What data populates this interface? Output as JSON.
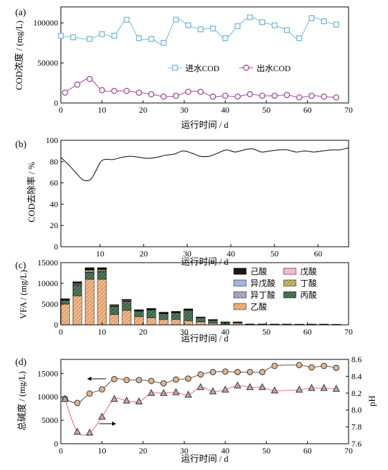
{
  "colors": {
    "influent": "#6db9e0",
    "effluent": "#a0469b",
    "hexanoic": "#111111",
    "valeric": "#f2b8d8",
    "isovaleric": "#9fb7df",
    "butyric": "#c7b96b",
    "isobutyric": "#b7a9cc",
    "propionic": "#4f7a5b",
    "acetic": "#f2b98a",
    "alkalinity": "#e8b48a",
    "ph": "#caa0b5"
  },
  "chart_data": [
    {
      "panel": "(a)",
      "type": "line",
      "ylabel": "COD浓度 / (mg/L)",
      "xlabel": "运行时间 / d",
      "xlim": [
        0,
        70
      ],
      "ylim": [
        0,
        120000
      ],
      "xticks": [
        "0",
        "10",
        "20",
        "30",
        "40",
        "50",
        "60",
        "70"
      ],
      "yticks": [
        "0",
        "50000",
        "100000"
      ],
      "series": [
        {
          "name": "进水COD",
          "marker": "square",
          "x": [
            0,
            3,
            7,
            10,
            13,
            16,
            19,
            22,
            25,
            28,
            31,
            34,
            37,
            40,
            43,
            46,
            49,
            52,
            55,
            58,
            61,
            64,
            67
          ],
          "y": [
            84000,
            82000,
            80000,
            86000,
            84000,
            104000,
            81000,
            80000,
            75000,
            104000,
            97000,
            92000,
            93000,
            81000,
            96000,
            107000,
            101000,
            97000,
            91000,
            81000,
            106000,
            102000,
            98000
          ]
        },
        {
          "name": "出水COD",
          "marker": "circle",
          "x": [
            1,
            4,
            7,
            10,
            13,
            16,
            19,
            22,
            25,
            28,
            31,
            34,
            37,
            40,
            43,
            46,
            49,
            52,
            55,
            58,
            61,
            64,
            67
          ],
          "y": [
            13000,
            23000,
            30000,
            16000,
            15000,
            15000,
            13000,
            11000,
            8000,
            9000,
            14000,
            14000,
            8000,
            9000,
            8000,
            11000,
            9000,
            9000,
            10000,
            7000,
            9000,
            8000,
            7000
          ]
        }
      ]
    },
    {
      "panel": "(b)",
      "type": "line",
      "ylabel": "COD去除率 / %",
      "xlabel": "运行时间 / d",
      "xlim": [
        1,
        67
      ],
      "ylim": [
        0,
        100
      ],
      "xticks": [
        "10",
        "20",
        "30",
        "40",
        "50",
        "60"
      ],
      "yticks": [
        "0",
        "20",
        "40",
        "60",
        "80",
        "100"
      ],
      "x": [
        1,
        3,
        5,
        6,
        7,
        8,
        9,
        10,
        11,
        13,
        15,
        17,
        19,
        21,
        23,
        25,
        27,
        29,
        31,
        33,
        35,
        37,
        39,
        41,
        43,
        45,
        47,
        49,
        51,
        53,
        55,
        57,
        59,
        61,
        63,
        65,
        67
      ],
      "y": [
        84,
        76,
        67,
        63,
        62,
        64,
        71,
        79,
        82,
        82,
        84,
        85,
        84,
        83,
        84,
        86,
        87,
        90,
        88,
        85,
        85,
        88,
        91,
        89,
        91,
        92,
        89,
        90,
        91,
        91,
        89,
        90,
        89,
        90,
        91,
        91,
        93
      ]
    },
    {
      "panel": "(c)",
      "type": "bar",
      "stacked": true,
      "ylabel": "VFA / (mg/L)",
      "xlabel": "运行时间 / d",
      "xlim": [
        0,
        70
      ],
      "ylim": [
        0,
        15000
      ],
      "xticks": [
        "0",
        "10",
        "20",
        "30",
        "40",
        "50",
        "60",
        "70"
      ],
      "yticks": [
        "0",
        "5000",
        "10000",
        "15000"
      ],
      "legend": [
        "己酸",
        "戊酸",
        "异戊酸",
        "丁酸",
        "异丁酸",
        "丙酸",
        "乙酸"
      ],
      "x": [
        1,
        4,
        7,
        10,
        13,
        16,
        19,
        22,
        25,
        28,
        31,
        34,
        37,
        40,
        43,
        46,
        49,
        52,
        55,
        58,
        61,
        64,
        67
      ],
      "series": [
        {
          "name": "乙酸",
          "values": [
            5000,
            7000,
            11000,
            11000,
            2500,
            3500,
            2000,
            1700,
            1300,
            1300,
            1000,
            700,
            400,
            200,
            400,
            80,
            70,
            60,
            60,
            50,
            50,
            50,
            40
          ]
        },
        {
          "name": "丙酸",
          "values": [
            900,
            2600,
            1600,
            1800,
            1900,
            2200,
            1300,
            1900,
            1400,
            1600,
            2500,
            1000,
            700,
            400,
            200,
            80,
            70,
            60,
            60,
            50,
            60,
            60,
            50
          ]
        },
        {
          "name": "异丁酸",
          "values": [
            100,
            200,
            200,
            200,
            100,
            100,
            100,
            100,
            100,
            100,
            100,
            50,
            50,
            30,
            30,
            10,
            10,
            10,
            10,
            10,
            10,
            10,
            10
          ]
        },
        {
          "name": "丁酸",
          "values": [
            100,
            200,
            400,
            300,
            200,
            200,
            100,
            100,
            100,
            100,
            100,
            50,
            50,
            30,
            30,
            10,
            10,
            10,
            10,
            10,
            10,
            10,
            10
          ]
        },
        {
          "name": "异戊酸",
          "values": [
            50,
            100,
            100,
            100,
            50,
            50,
            50,
            50,
            50,
            50,
            50,
            30,
            30,
            20,
            20,
            10,
            10,
            10,
            10,
            10,
            10,
            10,
            10
          ]
        },
        {
          "name": "戊酸",
          "values": [
            50,
            100,
            100,
            100,
            50,
            50,
            50,
            50,
            50,
            50,
            50,
            30,
            30,
            20,
            20,
            10,
            10,
            10,
            10,
            10,
            10,
            10,
            10
          ]
        },
        {
          "name": "己酸",
          "values": [
            100,
            200,
            400,
            300,
            50,
            50,
            50,
            50,
            50,
            50,
            50,
            30,
            30,
            20,
            20,
            10,
            10,
            10,
            10,
            10,
            10,
            10,
            10
          ]
        }
      ]
    },
    {
      "panel": "(d)",
      "type": "line",
      "ylabel": "总碱度 / (mg/L)",
      "ylabel_right": "pH",
      "xlabel": "运行时间 / d",
      "xlim": [
        0,
        70
      ],
      "ylim": [
        0,
        18000
      ],
      "ylim_right": [
        7.6,
        8.6
      ],
      "xticks": [
        "0",
        "10",
        "20",
        "30",
        "40",
        "50",
        "60",
        "70"
      ],
      "yticks": [
        "0",
        "5000",
        "10000",
        "15000"
      ],
      "yticks_right": [
        "7.6",
        "7.8",
        "8.0",
        "8.2",
        "8.4",
        "8.6"
      ],
      "series": [
        {
          "name": "alkalinity",
          "axis": "left",
          "marker": "circle",
          "x": [
            1,
            4,
            7,
            10,
            13,
            16,
            19,
            22,
            25,
            28,
            31,
            34,
            37,
            40,
            43,
            46,
            49,
            52,
            58,
            61,
            64,
            67
          ],
          "y": [
            9600,
            8700,
            10700,
            11600,
            13800,
            13600,
            13600,
            13400,
            12900,
            13700,
            13900,
            14800,
            15300,
            15400,
            15300,
            15300,
            15300,
            16600,
            16800,
            16300,
            16600,
            16200
          ]
        },
        {
          "name": "pH",
          "axis": "right",
          "marker": "triangle",
          "x": [
            1,
            4,
            7,
            10,
            13,
            16,
            19,
            22,
            25,
            28,
            31,
            34,
            37,
            40,
            43,
            46,
            49,
            52,
            58,
            61,
            64,
            67
          ],
          "y": [
            8.13,
            7.74,
            7.73,
            7.92,
            8.13,
            8.11,
            8.1,
            8.2,
            8.2,
            8.21,
            8.18,
            8.27,
            8.22,
            8.24,
            8.29,
            8.27,
            8.27,
            8.23,
            8.24,
            8.26,
            8.26,
            8.25
          ]
        }
      ]
    }
  ]
}
